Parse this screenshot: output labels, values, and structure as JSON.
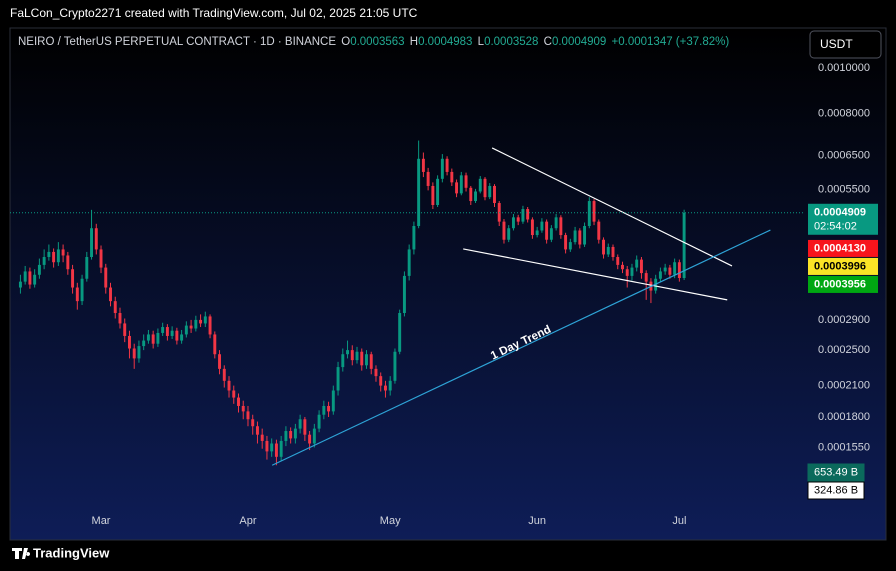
{
  "header": {
    "credit": "FaLCon_Crypto2271 created with TradingView.com, Jul 02, 2025 21:05 UTC"
  },
  "footer": {
    "brand": "TradingView"
  },
  "chart_data": {
    "type": "candlestick",
    "legend_title": "NEIRO / TetherUS PERPETUAL CONTRACT · 1D · BINANCE",
    "ohlc_keys": [
      "O",
      "H",
      "L",
      "C"
    ],
    "change": "+0.0001347 (+37.82%)",
    "currency": "USDT",
    "up_color": "#089981",
    "down_color": "#f23645",
    "log_scale": true,
    "grid": false,
    "x": [
      0,
      1,
      2,
      3,
      4,
      5,
      6,
      7,
      8,
      9,
      10,
      11,
      12,
      13,
      14,
      15,
      16,
      17,
      18,
      19,
      20,
      21,
      22,
      23,
      24,
      25,
      26,
      27,
      28,
      29,
      30,
      31,
      32,
      33,
      34,
      35,
      36,
      37,
      38,
      39,
      40,
      41,
      42,
      43,
      44,
      45,
      46,
      47,
      48,
      49,
      50,
      51,
      52,
      53,
      54,
      55,
      56,
      57,
      58,
      59,
      60,
      61,
      62,
      63,
      64,
      65,
      66,
      67,
      68,
      69,
      70,
      71,
      72,
      73,
      74,
      75,
      76,
      77,
      78,
      79,
      80,
      81,
      82,
      83,
      84,
      85,
      86,
      87,
      88,
      89,
      90,
      91,
      92,
      93,
      94,
      95,
      96,
      97,
      98,
      99,
      100,
      101,
      102,
      103,
      104,
      105,
      106,
      107,
      108,
      109,
      110,
      111,
      112,
      113,
      114,
      115,
      116,
      117,
      118,
      119,
      120,
      121,
      122,
      123,
      124,
      125,
      126,
      127,
      128,
      129,
      130,
      131,
      132,
      133,
      134,
      135,
      136,
      137,
      138,
      139,
      140
    ],
    "open": [
      0.00034,
      0.00035,
      0.000368,
      0.000345,
      0.000362,
      0.00038,
      0.000395,
      0.000405,
      0.000385,
      0.00041,
      0.000398,
      0.000372,
      0.00034,
      0.000318,
      0.000355,
      0.000395,
      0.000455,
      0.00041,
      0.000375,
      0.00034,
      0.000318,
      0.0003,
      0.000285,
      0.000268,
      0.000252,
      0.00024,
      0.000255,
      0.000262,
      0.00027,
      0.000258,
      0.000272,
      0.00028,
      0.000268,
      0.000275,
      0.000262,
      0.00027,
      0.000282,
      0.000278,
      0.00029,
      0.000285,
      0.000295,
      0.00027,
      0.000245,
      0.000228,
      0.000215,
      0.000205,
      0.000198,
      0.00019,
      0.000185,
      0.000178,
      0.000172,
      0.000165,
      0.00016,
      0.000152,
      0.000158,
      0.000148,
      0.00016,
      0.000168,
      0.000162,
      0.00017,
      0.000178,
      0.000165,
      0.000158,
      0.00017,
      0.000182,
      0.00019,
      0.000185,
      0.000205,
      0.00023,
      0.000245,
      0.00025,
      0.000238,
      0.000248,
      0.000232,
      0.000245,
      0.000228,
      0.00022,
      0.00021,
      0.000205,
      0.000215,
      0.000248,
      0.0003,
      0.00036,
      0.00041,
      0.00046,
      0.00064,
      0.0006,
      0.00056,
      0.00051,
      0.00058,
      0.00064,
      0.0006,
      0.00057,
      0.00054,
      0.00059,
      0.000555,
      0.00052,
      0.000545,
      0.00058,
      0.00053,
      0.00056,
      0.000515,
      0.00047,
      0.00043,
      0.000455,
      0.00048,
      0.00047,
      0.0005,
      0.000475,
      0.00044,
      0.00045,
      0.00047,
      0.00043,
      0.000455,
      0.00048,
      0.00044,
      0.00041,
      0.000425,
      0.00045,
      0.00042,
      0.00046,
      0.00052,
      0.00047,
      0.00043,
      0.0004,
      0.000415,
      0.000395,
      0.00038,
      0.000372,
      0.00036,
      0.000375,
      0.00039,
      0.000365,
      0.00035,
      0.000335,
      0.000355,
      0.000368,
      0.000375,
      0.000362,
      0.000385,
      0.0003563
    ],
    "high": [
      0.000362,
      0.000378,
      0.000375,
      0.000372,
      0.000392,
      0.00041,
      0.00042,
      0.000412,
      0.000425,
      0.00042,
      0.000405,
      0.00038,
      0.000348,
      0.000362,
      0.000405,
      0.000498,
      0.000465,
      0.000418,
      0.000382,
      0.000348,
      0.000325,
      0.000308,
      0.000292,
      0.000275,
      0.000258,
      0.000262,
      0.00027,
      0.000276,
      0.000275,
      0.000278,
      0.000286,
      0.000284,
      0.000281,
      0.000279,
      0.000276,
      0.000288,
      0.00029,
      0.000296,
      0.000298,
      0.000302,
      0.000298,
      0.000274,
      0.00025,
      0.000232,
      0.00022,
      0.00021,
      0.000202,
      0.000195,
      0.00019,
      0.000182,
      0.000176,
      0.00017,
      0.000164,
      0.000162,
      0.000161,
      0.000164,
      0.000172,
      0.000171,
      0.000174,
      0.000182,
      0.00018,
      0.000168,
      0.000174,
      0.000186,
      0.000195,
      0.000194,
      0.00021,
      0.000236,
      0.000252,
      0.000262,
      0.000256,
      0.000254,
      0.000252,
      0.00025,
      0.000248,
      0.000232,
      0.000224,
      0.000215,
      0.00022,
      0.000252,
      0.000305,
      0.000368,
      0.00042,
      0.00047,
      0.0007,
      0.00066,
      0.000612,
      0.00057,
      0.00059,
      0.000655,
      0.000648,
      0.00061,
      0.000578,
      0.0006,
      0.000598,
      0.00056,
      0.000552,
      0.000588,
      0.000585,
      0.000568,
      0.000565,
      0.00052,
      0.000476,
      0.000462,
      0.000488,
      0.000486,
      0.000508,
      0.000505,
      0.00048,
      0.000458,
      0.000478,
      0.000475,
      0.000462,
      0.000488,
      0.000485,
      0.000445,
      0.000432,
      0.000458,
      0.000455,
      0.000468,
      0.00053,
      0.000525,
      0.000475,
      0.000435,
      0.000422,
      0.00042,
      0.0004,
      0.000386,
      0.000378,
      0.000382,
      0.000398,
      0.000395,
      0.00037,
      0.000356,
      0.000362,
      0.000375,
      0.000382,
      0.00038,
      0.000392,
      0.00039,
      0.0004983
    ],
    "low": [
      0.00033,
      0.000345,
      0.000338,
      0.00034,
      0.000355,
      0.000372,
      0.000388,
      0.000375,
      0.000378,
      0.000385,
      0.000362,
      0.00033,
      0.000305,
      0.000312,
      0.00035,
      0.00039,
      0.0004,
      0.000365,
      0.00033,
      0.00031,
      0.000292,
      0.000278,
      0.00026,
      0.00024,
      0.000228,
      0.000235,
      0.00025,
      0.000258,
      0.000252,
      0.000254,
      0.000268,
      0.000262,
      0.000264,
      0.000257,
      0.000258,
      0.000266,
      0.000272,
      0.000274,
      0.00028,
      0.00028,
      0.000265,
      0.00024,
      0.000222,
      0.000208,
      0.000198,
      0.000192,
      0.000184,
      0.000178,
      0.000172,
      0.000165,
      0.000158,
      0.000154,
      0.000146,
      0.000148,
      0.000142,
      0.000145,
      0.000156,
      0.000158,
      0.000158,
      0.000166,
      0.00016,
      0.000153,
      0.000155,
      0.000167,
      0.000178,
      0.00018,
      0.000182,
      0.0002,
      0.000225,
      0.00024,
      0.000232,
      0.000234,
      0.000226,
      0.000228,
      0.000222,
      0.000214,
      0.000204,
      0.000198,
      0.0002,
      0.000212,
      0.000245,
      0.000295,
      0.000352,
      0.0004,
      0.000455,
      0.000585,
      0.000548,
      0.0005,
      0.000505,
      0.00057,
      0.00059,
      0.00056,
      0.00053,
      0.000535,
      0.000545,
      0.00051,
      0.000515,
      0.00054,
      0.000522,
      0.000525,
      0.000505,
      0.00046,
      0.000422,
      0.000425,
      0.00045,
      0.000462,
      0.000465,
      0.000468,
      0.000432,
      0.000435,
      0.000445,
      0.000422,
      0.000425,
      0.00045,
      0.000432,
      0.000402,
      0.000405,
      0.00042,
      0.000412,
      0.000415,
      0.000455,
      0.000462,
      0.000422,
      0.000392,
      0.000395,
      0.000388,
      0.000372,
      0.000365,
      0.00034,
      0.000352,
      0.000368,
      0.000355,
      0.00032,
      0.000315,
      0.00033,
      0.00035,
      0.000362,
      0.000355,
      0.000356,
      0.00035,
      0.0003528
    ],
    "close": [
      0.00035,
      0.000368,
      0.000345,
      0.000362,
      0.00038,
      0.000395,
      0.000405,
      0.000385,
      0.00041,
      0.000398,
      0.000372,
      0.00034,
      0.000318,
      0.000355,
      0.000395,
      0.000455,
      0.00041,
      0.000375,
      0.00034,
      0.000318,
      0.0003,
      0.000285,
      0.000268,
      0.000252,
      0.00024,
      0.000255,
      0.000262,
      0.00027,
      0.000258,
      0.000272,
      0.00028,
      0.000268,
      0.000275,
      0.000262,
      0.00027,
      0.000282,
      0.000278,
      0.00029,
      0.000285,
      0.000295,
      0.00027,
      0.000245,
      0.000228,
      0.000215,
      0.000205,
      0.000198,
      0.00019,
      0.000185,
      0.000178,
      0.000172,
      0.000165,
      0.00016,
      0.000152,
      0.000158,
      0.000148,
      0.00016,
      0.000168,
      0.000162,
      0.00017,
      0.000178,
      0.000165,
      0.000158,
      0.00017,
      0.000182,
      0.00019,
      0.000185,
      0.000205,
      0.00023,
      0.000245,
      0.00025,
      0.000238,
      0.000248,
      0.000232,
      0.000245,
      0.000228,
      0.00022,
      0.00021,
      0.000205,
      0.000215,
      0.000248,
      0.0003,
      0.00036,
      0.00041,
      0.00046,
      0.00064,
      0.0006,
      0.00056,
      0.00051,
      0.00058,
      0.00064,
      0.0006,
      0.00057,
      0.00054,
      0.00059,
      0.000555,
      0.00052,
      0.000545,
      0.00058,
      0.00053,
      0.00056,
      0.000515,
      0.00047,
      0.00043,
      0.000455,
      0.00048,
      0.00047,
      0.0005,
      0.000475,
      0.00044,
      0.00045,
      0.00047,
      0.00043,
      0.000455,
      0.00048,
      0.00044,
      0.00041,
      0.000425,
      0.00045,
      0.00042,
      0.00046,
      0.00052,
      0.00047,
      0.00043,
      0.0004,
      0.000415,
      0.000395,
      0.00038,
      0.000372,
      0.00036,
      0.000375,
      0.00039,
      0.000365,
      0.00035,
      0.000335,
      0.000355,
      0.000368,
      0.000375,
      0.000362,
      0.000385,
      0.0003563,
      0.0004909
    ],
    "xlim": [
      -2.2,
      165.5
    ],
    "xticks": [
      {
        "value": 17,
        "label": "Mar"
      },
      {
        "value": 48,
        "label": "Apr"
      },
      {
        "value": 78,
        "label": "May"
      },
      {
        "value": 109,
        "label": "Jun"
      },
      {
        "value": 139,
        "label": "Jul"
      }
    ],
    "ylim": [
      0.0001033,
      0.001205
    ],
    "yticks": [
      {
        "value": 0.001,
        "label": "0.0010000"
      },
      {
        "value": 0.0008,
        "label": "0.0008000"
      },
      {
        "value": 0.00065,
        "label": "0.0006500"
      },
      {
        "value": 0.00055,
        "label": "0.0005500"
      },
      {
        "value": 0.00029,
        "label": "0.0002900"
      },
      {
        "value": 0.00025,
        "label": "0.0002500"
      },
      {
        "value": 0.00021,
        "label": "0.0002100"
      },
      {
        "value": 0.00018,
        "label": "0.0001800"
      },
      {
        "value": 0.000155,
        "label": "0.0001550"
      }
    ],
    "countdown": "02:54:02",
    "price_labels": [
      {
        "value": 0.000413,
        "label": "0.0004130",
        "color": "#f7141c",
        "text_color": "#ffffff"
      },
      {
        "value": 0.0003996,
        "color": "#fbe426",
        "text_color": "#000000"
      },
      {
        "value": 0.0003956,
        "color": "#00a712",
        "text_color": "#ffffff"
      }
    ],
    "volume_labels": [
      "653.49 B",
      "324.86 B"
    ],
    "trendlines": [
      {
        "x": [
          99.5,
          150.1
        ],
        "y": [
          0.000675,
          0.000378
        ],
        "color": "#ffffff"
      },
      {
        "x": [
          93.4,
          149.1
        ],
        "y": [
          0.000411,
          0.00032
        ],
        "color": "#ffffff"
      },
      {
        "x": [
          53.1,
          158.2
        ],
        "y": [
          0.000142,
          0.000451
        ],
        "color": "#2ea3d6"
      }
    ],
    "annotation": "1 Day Trend"
  }
}
